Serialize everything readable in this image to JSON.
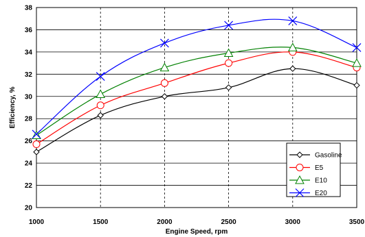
{
  "chart_data": {
    "type": "line",
    "x": [
      1000,
      1500,
      2000,
      2500,
      3000,
      3500
    ],
    "xlabel": "Engine Speed, rpm",
    "ylabel": "Efficiency, %",
    "xlim": [
      1000,
      3500
    ],
    "ylim": [
      20,
      38
    ],
    "xticks": [
      "1000",
      "1500",
      "2000",
      "2500",
      "3000",
      "3500"
    ],
    "yticks": [
      "20",
      "22",
      "24",
      "26",
      "28",
      "30",
      "32",
      "34",
      "36",
      "38"
    ],
    "grid": "vertical dashed, horizontal solid",
    "legend_position": "bottom-right",
    "series": [
      {
        "name": "Gasoline",
        "color": "#000000",
        "marker": "diamond",
        "values": [
          25.0,
          28.3,
          30.0,
          30.8,
          32.5,
          31.0
        ]
      },
      {
        "name": "E5",
        "color": "#ff0000",
        "marker": "circle",
        "values": [
          25.7,
          29.2,
          31.2,
          33.0,
          34.0,
          32.6
        ]
      },
      {
        "name": "E10",
        "color": "#008000",
        "marker": "triangle",
        "values": [
          26.5,
          30.2,
          32.6,
          33.9,
          34.4,
          33.0
        ]
      },
      {
        "name": "E20",
        "color": "#0000ff",
        "marker": "x",
        "values": [
          26.6,
          31.8,
          34.8,
          36.4,
          36.8,
          34.4
        ]
      }
    ]
  }
}
